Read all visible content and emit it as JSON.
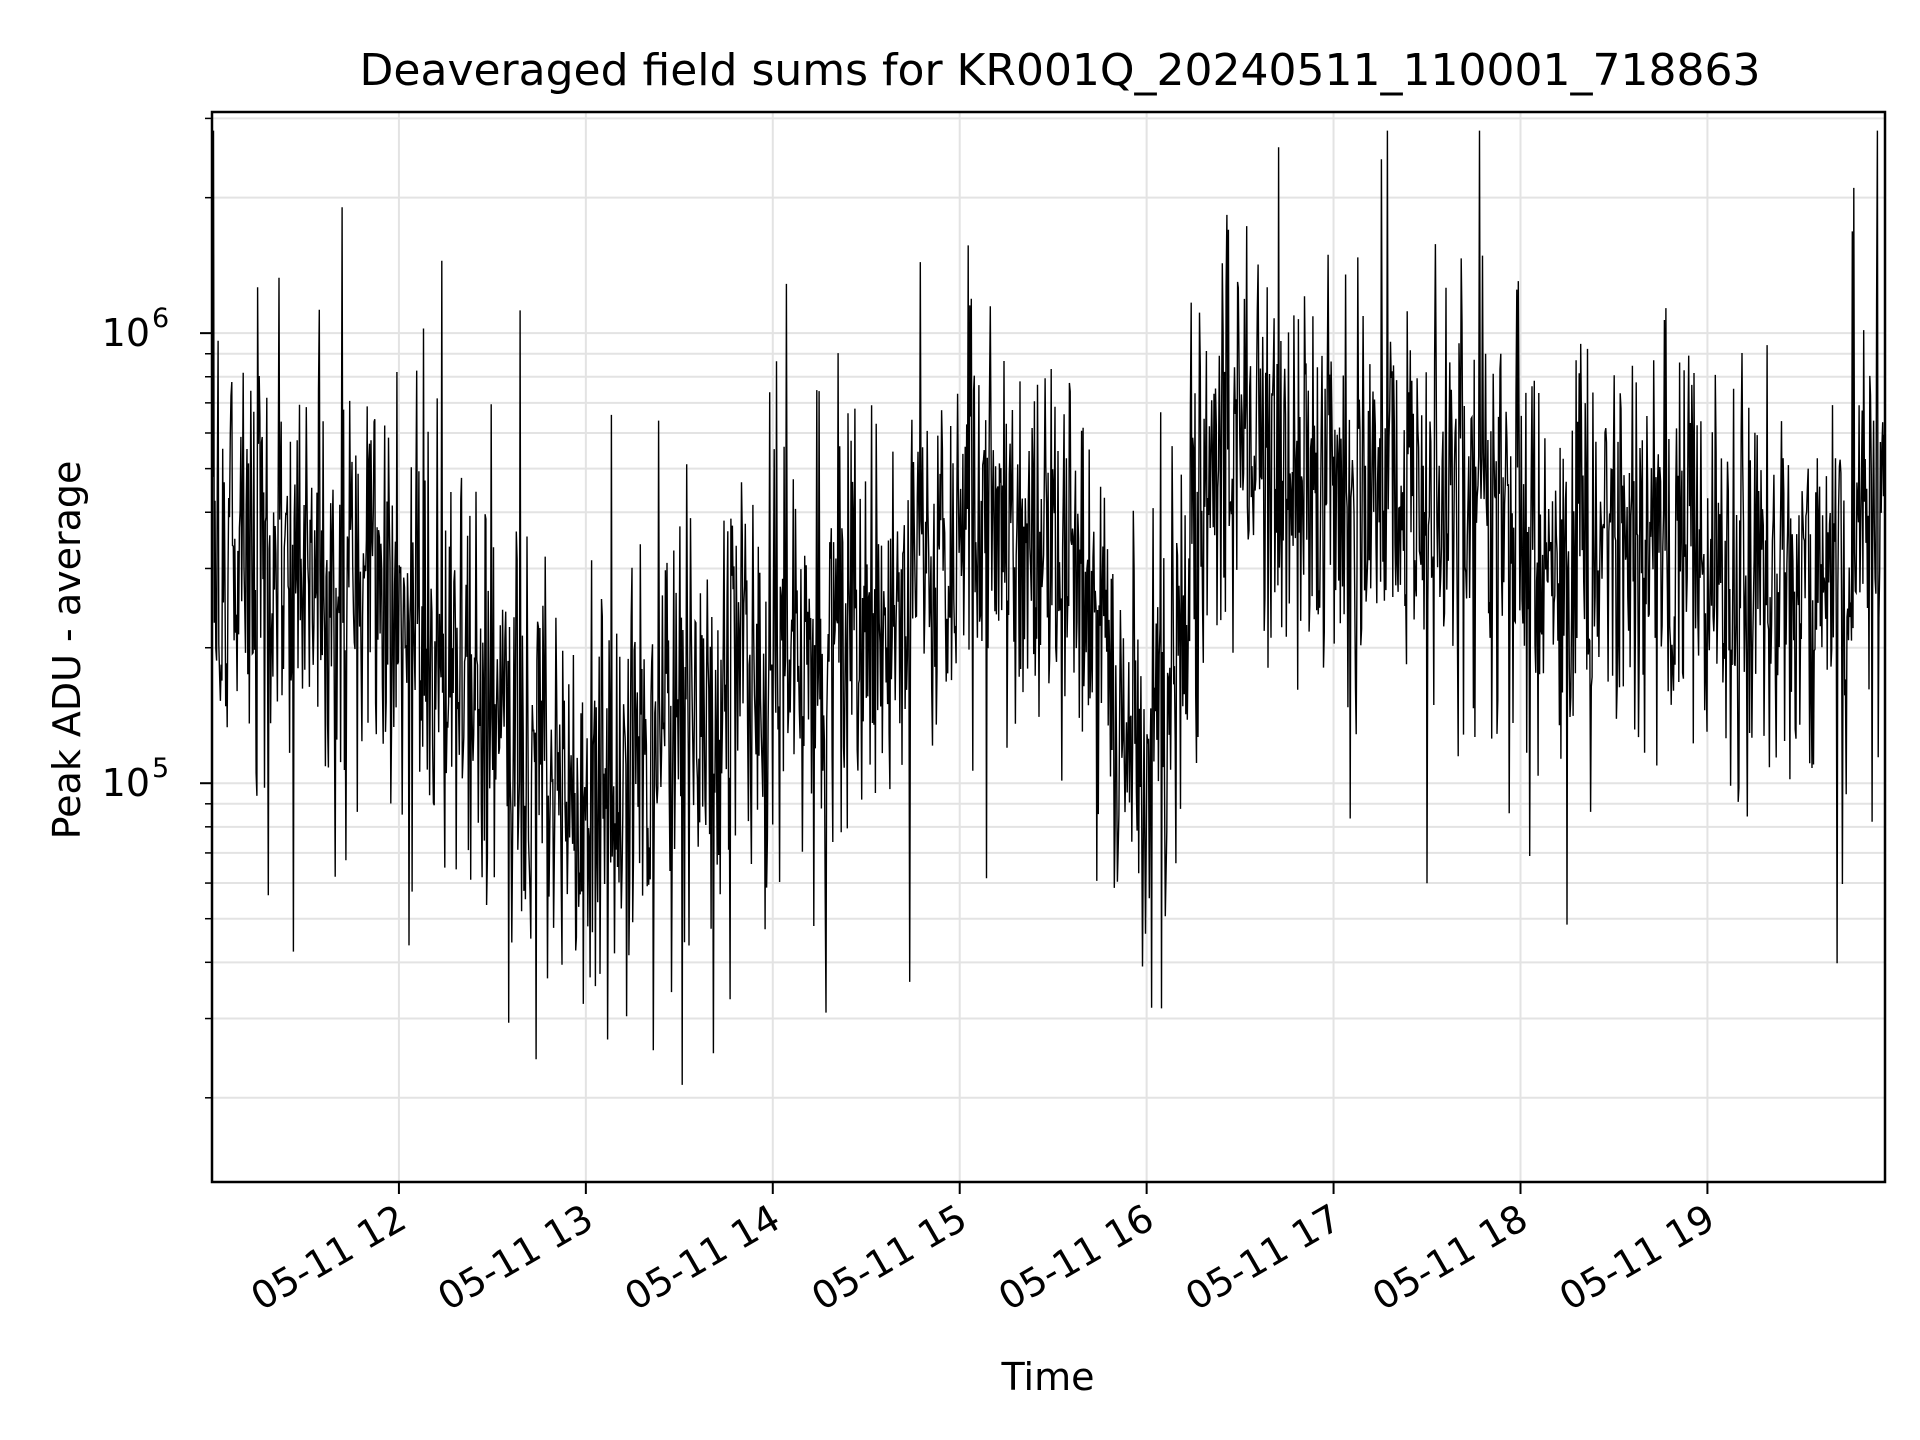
{
  "chart_data": {
    "type": "line",
    "title": "Deaveraged field sums for KR001Q_20240511_110001_718863",
    "xlabel": "Time",
    "ylabel": "Peak ADU - average",
    "x_range": [
      "2024-05-11 11:00",
      "2024-05-11 19:57"
    ],
    "y_range": [
      13000,
      3100000
    ],
    "yscale": "log",
    "grid": true,
    "line_color": "#000000",
    "x_ticks": [
      {
        "x": "2024-05-11 12:00",
        "label": "05-11 12"
      },
      {
        "x": "2024-05-11 13:00",
        "label": "05-11 13"
      },
      {
        "x": "2024-05-11 14:00",
        "label": "05-11 14"
      },
      {
        "x": "2024-05-11 15:00",
        "label": "05-11 15"
      },
      {
        "x": "2024-05-11 16:00",
        "label": "05-11 16"
      },
      {
        "x": "2024-05-11 17:00",
        "label": "05-11 17"
      },
      {
        "x": "2024-05-11 18:00",
        "label": "05-11 18"
      },
      {
        "x": "2024-05-11 19:00",
        "label": "05-11 19"
      }
    ],
    "y_ticks": [
      {
        "y": 100000,
        "base": "10",
        "exp": "5"
      },
      {
        "y": 1000000,
        "base": "10",
        "exp": "6"
      }
    ],
    "series": [
      {
        "x": [
          "2024-05-11 11:00",
          "2024-05-11 11:10",
          "2024-05-11 11:20",
          "2024-05-11 11:30",
          "2024-05-11 11:40",
          "2024-05-11 11:50",
          "2024-05-11 12:00",
          "2024-05-11 12:10",
          "2024-05-11 12:20",
          "2024-05-11 12:30",
          "2024-05-11 12:40",
          "2024-05-11 12:50",
          "2024-05-11 13:00",
          "2024-05-11 13:10",
          "2024-05-11 13:20",
          "2024-05-11 13:30",
          "2024-05-11 13:40",
          "2024-05-11 13:50",
          "2024-05-11 14:00",
          "2024-05-11 14:10",
          "2024-05-11 14:20",
          "2024-05-11 14:30",
          "2024-05-11 14:40",
          "2024-05-11 14:50",
          "2024-05-11 15:00",
          "2024-05-11 15:10",
          "2024-05-11 15:20",
          "2024-05-11 15:30",
          "2024-05-11 15:40",
          "2024-05-11 15:50",
          "2024-05-11 16:00",
          "2024-05-11 16:10",
          "2024-05-11 16:20",
          "2024-05-11 16:30",
          "2024-05-11 16:40",
          "2024-05-11 16:50",
          "2024-05-11 17:00",
          "2024-05-11 17:10",
          "2024-05-11 17:20",
          "2024-05-11 17:30",
          "2024-05-11 17:40",
          "2024-05-11 17:50",
          "2024-05-11 18:00",
          "2024-05-11 18:10",
          "2024-05-11 18:20",
          "2024-05-11 18:30",
          "2024-05-11 18:40",
          "2024-05-11 18:50",
          "2024-05-11 19:00",
          "2024-05-11 19:10",
          "2024-05-11 19:20",
          "2024-05-11 19:30",
          "2024-05-11 19:40",
          "2024-05-11 19:50",
          "2024-05-11 19:57"
        ],
        "values": [
          400000,
          300000,
          320000,
          280000,
          260000,
          250000,
          230000,
          210000,
          200000,
          160000,
          120000,
          100000,
          90000,
          110000,
          120000,
          130000,
          140000,
          150000,
          190000,
          200000,
          230000,
          240000,
          250000,
          280000,
          300000,
          350000,
          380000,
          330000,
          280000,
          150000,
          100000,
          180000,
          450000,
          600000,
          500000,
          420000,
          430000,
          480000,
          450000,
          430000,
          430000,
          400000,
          350000,
          300000,
          320000,
          330000,
          320000,
          310000,
          300000,
          280000,
          270000,
          290000,
          330000,
          380000,
          400000
        ]
      }
    ]
  }
}
